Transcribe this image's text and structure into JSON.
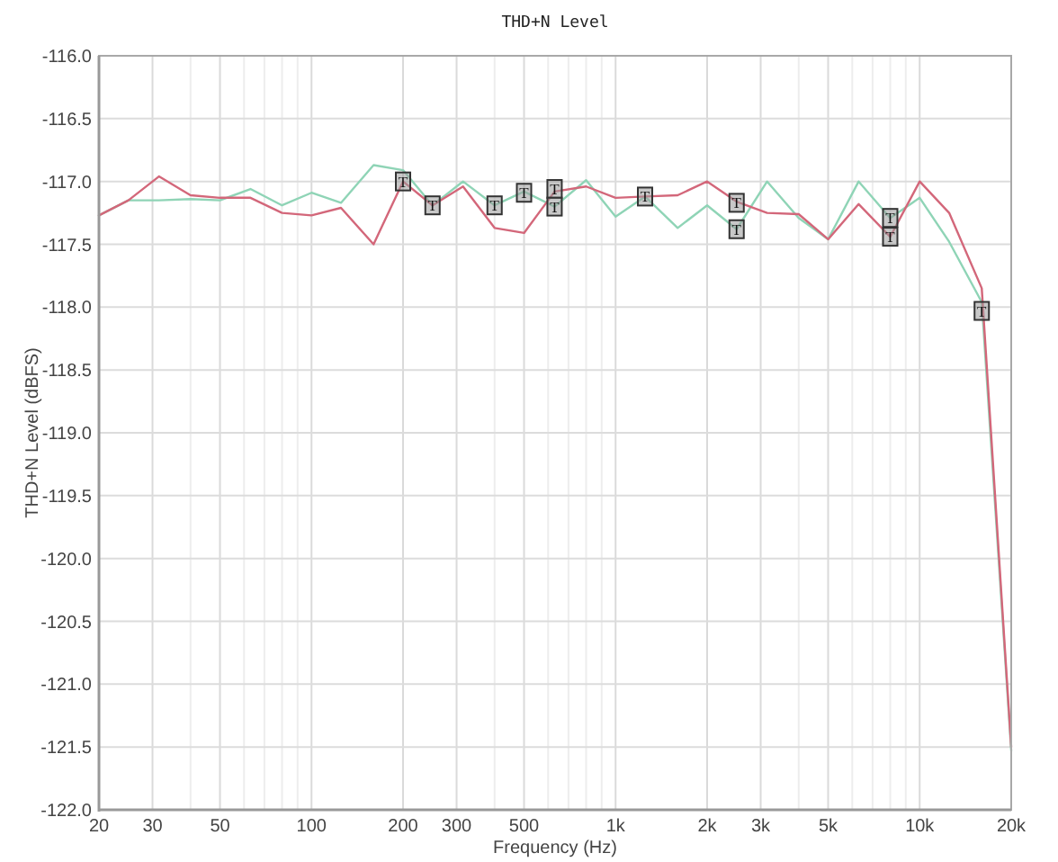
{
  "chart_data": {
    "type": "line",
    "title": "THD+N Level",
    "xlabel": "Frequency (Hz)",
    "ylabel": "THD+N Level (dBFS)",
    "x": [
      20,
      25,
      31.5,
      40,
      50,
      63,
      80,
      100,
      125,
      160,
      200,
      250,
      315,
      400,
      500,
      630,
      800,
      1000,
      1250,
      1600,
      2000,
      2500,
      3150,
      4000,
      5000,
      6300,
      8000,
      10000,
      12500,
      16000,
      20000
    ],
    "series": [
      {
        "color": "#8fd4b6",
        "values": [
          -117.27,
          -117.15,
          -117.15,
          -117.14,
          -117.15,
          -117.06,
          -117.19,
          -117.09,
          -117.17,
          -116.87,
          -116.91,
          -117.19,
          -117.0,
          -117.19,
          -117.08,
          -117.2,
          -116.99,
          -117.28,
          -117.12,
          -117.37,
          -117.19,
          -117.38,
          -117.0,
          -117.29,
          -117.46,
          -117.0,
          -117.29,
          -117.13,
          -117.48,
          -117.96,
          -121.53
        ]
      },
      {
        "color": "#d3677a",
        "values": [
          -117.27,
          -117.15,
          -116.96,
          -117.11,
          -117.13,
          -117.13,
          -117.25,
          -117.27,
          -117.21,
          -117.5,
          -117.0,
          -117.19,
          -117.04,
          -117.37,
          -117.41,
          -117.08,
          -117.04,
          -117.13,
          -117.12,
          -117.11,
          -117.0,
          -117.16,
          -117.25,
          -117.26,
          -117.46,
          -117.18,
          -117.44,
          -117.0,
          -117.25,
          -117.85,
          -121.5
        ]
      }
    ],
    "log": "x",
    "grid": true,
    "xlim": [
      20,
      20000
    ],
    "xticks": [
      20,
      30,
      {
        "value": 40,
        "label": null
      },
      50,
      {
        "value": 60,
        "label": null
      },
      {
        "value": 70,
        "label": null
      },
      {
        "value": 80,
        "label": null
      },
      {
        "value": 90,
        "label": null
      },
      100,
      200,
      300,
      {
        "value": 400,
        "label": null
      },
      500,
      {
        "value": 600,
        "label": null
      },
      {
        "value": 700,
        "label": null
      },
      {
        "value": 800,
        "label": null
      },
      {
        "value": 900,
        "label": null
      },
      {
        "value": 1000,
        "label": "1k"
      },
      {
        "value": 2000,
        "label": "2k"
      },
      {
        "value": 3000,
        "label": "3k"
      },
      {
        "value": 4000,
        "label": null
      },
      {
        "value": 5000,
        "label": "5k"
      },
      {
        "value": 6000,
        "label": null
      },
      {
        "value": 7000,
        "label": null
      },
      {
        "value": 8000,
        "label": null
      },
      {
        "value": 9000,
        "label": null
      },
      {
        "value": 10000,
        "label": "10k"
      },
      {
        "value": 20000,
        "label": "20k"
      }
    ],
    "ylim": [
      -122,
      -116
    ],
    "yticks": [
      {
        "value": -122,
        "label": "-122.0"
      },
      -121.5,
      {
        "value": -121,
        "label": "-121.0"
      },
      -120.5,
      {
        "value": -120,
        "label": "-120.0"
      },
      -119.5,
      {
        "value": -119,
        "label": "-119.0"
      },
      -118.5,
      {
        "value": -118,
        "label": "-118.0"
      },
      -117.5,
      {
        "value": -117,
        "label": "-117.0"
      },
      -116.5,
      {
        "value": -116,
        "label": "-116.0"
      }
    ],
    "annotations": [
      {
        "text": "T",
        "x": 200,
        "y": -117.0
      },
      {
        "text": "T",
        "x": 250,
        "y": -117.19
      },
      {
        "text": "T",
        "x": 400,
        "y": -117.19
      },
      {
        "text": "T",
        "x": 500,
        "y": -117.09
      },
      {
        "text": "T",
        "x": 630,
        "y": -117.06
      },
      {
        "text": "T",
        "x": 630,
        "y": -117.2
      },
      {
        "text": "T",
        "x": 1250,
        "y": -117.12
      },
      {
        "text": "T",
        "x": 2500,
        "y": -117.17
      },
      {
        "text": "T",
        "x": 2500,
        "y": -117.38
      },
      {
        "text": "T",
        "x": 8000,
        "y": -117.29
      },
      {
        "text": "T",
        "x": 8000,
        "y": -117.44
      },
      {
        "text": "T",
        "x": 16000,
        "y": -118.03
      }
    ]
  }
}
